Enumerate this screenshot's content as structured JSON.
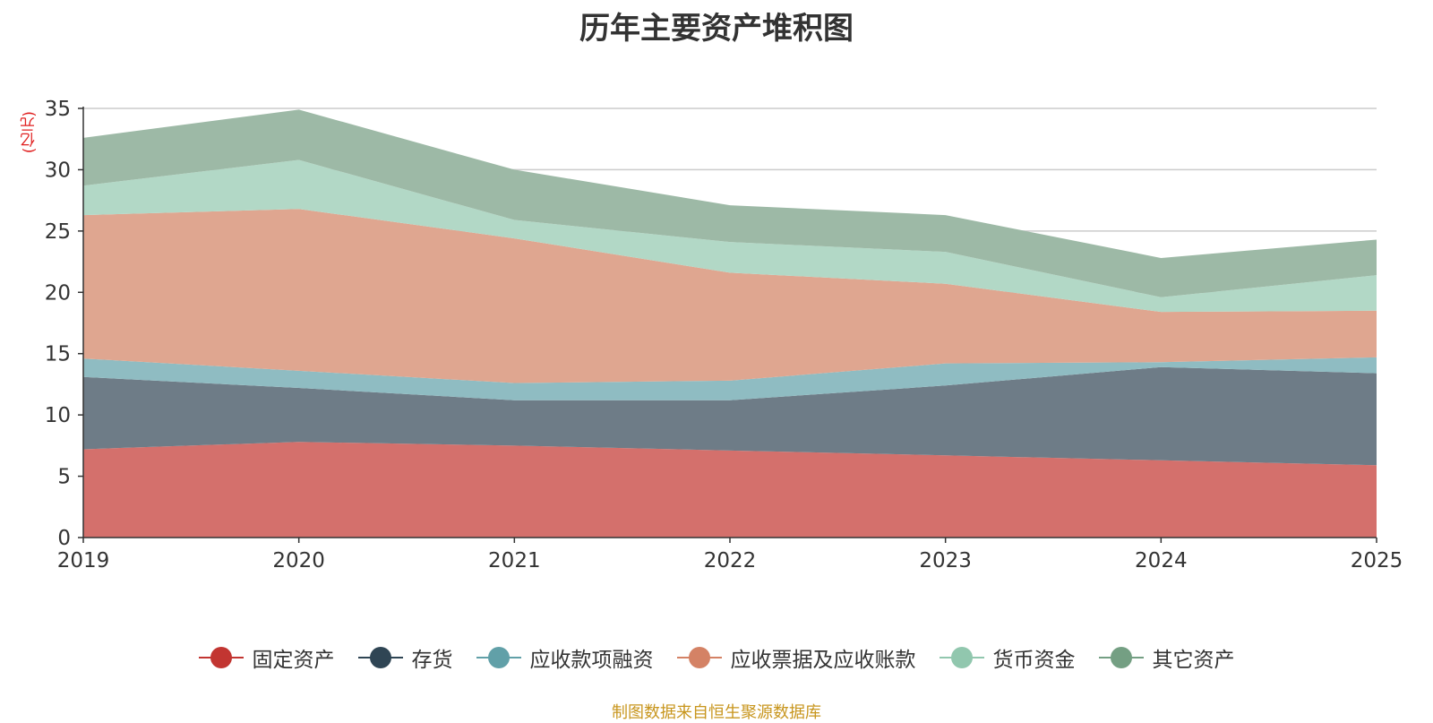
{
  "chart_data": {
    "type": "area",
    "stacked": true,
    "title": "历年主要资产堆积图",
    "ylabel": "(亿元)",
    "xlabel": "",
    "x": [
      "2019",
      "2020",
      "2021",
      "2022",
      "2023",
      "2024",
      "2025"
    ],
    "ylim": [
      0,
      35
    ],
    "yticks": [
      0,
      5,
      10,
      15,
      20,
      25,
      30,
      35
    ],
    "grid": true,
    "legend_position": "bottom",
    "series": [
      {
        "name": "固定资产",
        "color": "#c23531",
        "fill": "#d4706c",
        "values": [
          7.2,
          7.8,
          7.5,
          7.1,
          6.7,
          6.3,
          5.9
        ]
      },
      {
        "name": "存货",
        "color": "#2f4554",
        "fill": "#6e7c87",
        "values": [
          5.9,
          4.4,
          3.7,
          4.1,
          5.7,
          7.6,
          7.5
        ]
      },
      {
        "name": "应收款项融资",
        "color": "#61a0a8",
        "fill": "#8fbcc2",
        "values": [
          1.5,
          1.4,
          1.4,
          1.6,
          1.8,
          0.4,
          1.3
        ]
      },
      {
        "name": "应收票据及应收账款",
        "color": "#d48265",
        "fill": "#dfa690",
        "values": [
          11.7,
          13.2,
          11.8,
          8.8,
          6.5,
          4.1,
          3.8
        ]
      },
      {
        "name": "货币资金",
        "color": "#91c7ae",
        "fill": "#b2d8c6",
        "values": [
          2.4,
          4.0,
          1.5,
          2.5,
          2.6,
          1.2,
          2.9
        ]
      },
      {
        "name": "其它资产",
        "color": "#749f83",
        "fill": "#9db9a6",
        "values": [
          3.9,
          4.1,
          4.1,
          3.0,
          3.0,
          3.2,
          2.9
        ]
      }
    ]
  },
  "footer": {
    "source": "制图数据来自恒生聚源数据库"
  }
}
